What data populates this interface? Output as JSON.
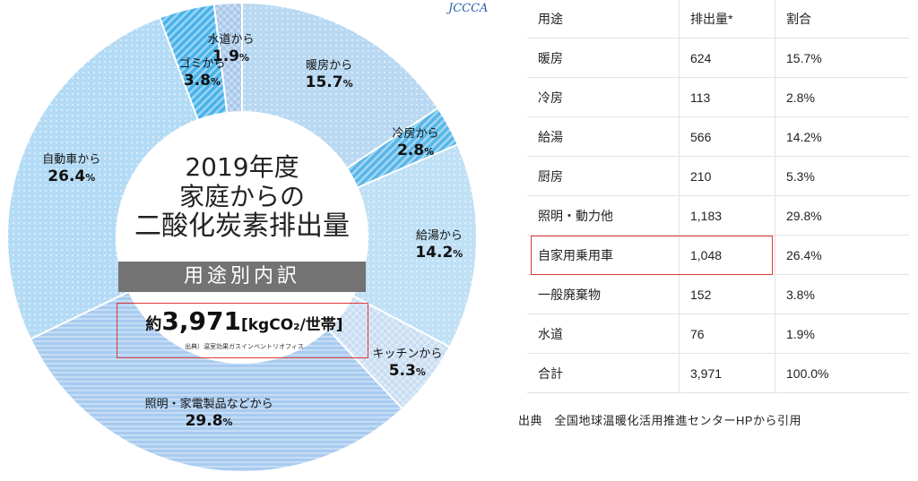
{
  "chart_data": {
    "type": "pie",
    "title": "2019年度 家庭からの 二酸化炭素排出量",
    "title_lines": [
      "2019年度",
      "家庭からの",
      "二酸化炭素排出量"
    ],
    "subtitle": "用途別内訳",
    "total_prefix": "約",
    "total_value": "3,971",
    "total_unit": "[kgCO₂/世帯]",
    "source_note": "出典）温室効果ガスインベントリオフィス",
    "logo_text": "JCCCA",
    "slices": [
      {
        "label": "暖房から",
        "value": 15.7,
        "pct_text": "15.7",
        "color": "#b9d8f2"
      },
      {
        "label": "冷房から",
        "value": 2.8,
        "pct_text": "2.8",
        "color": "#58b6e8"
      },
      {
        "label": "給湯から",
        "value": 14.2,
        "pct_text": "14.2",
        "color": "#bfe0f5"
      },
      {
        "label": "キッチンから",
        "value": 5.3,
        "pct_text": "5.3",
        "color": "#c9ddf3"
      },
      {
        "label": "照明・家電製品などから",
        "value": 29.8,
        "pct_text": "29.8",
        "color": "#a8cbef"
      },
      {
        "label": "自動車から",
        "value": 26.4,
        "pct_text": "26.4",
        "color": "#b4dbf5"
      },
      {
        "label": "ゴミから",
        "value": 3.8,
        "pct_text": "3.8",
        "color": "#49b3ea"
      },
      {
        "label": "水道から",
        "value": 1.9,
        "pct_text": "1.9",
        "color": "#a8c8ea"
      }
    ],
    "pct_suffix": "%"
  },
  "table": {
    "headers": [
      "用途",
      "排出量*",
      "割合"
    ],
    "rows": [
      [
        "暖房",
        "624",
        "15.7%"
      ],
      [
        "冷房",
        "113",
        "2.8%"
      ],
      [
        "給湯",
        "566",
        "14.2%"
      ],
      [
        "厨房",
        "210",
        "5.3%"
      ],
      [
        "照明・動力他",
        "1,183",
        "29.8%"
      ],
      [
        "自家用乗用車",
        "1,048",
        "26.4%"
      ],
      [
        "一般廃棄物",
        "152",
        "3.8%"
      ],
      [
        "水道",
        "76",
        "1.9%"
      ],
      [
        "合計",
        "3,971",
        "100.0%"
      ]
    ],
    "highlighted_row": 5
  },
  "source_caption": "出典　全国地球温暖化活用推進センターHPから引用"
}
